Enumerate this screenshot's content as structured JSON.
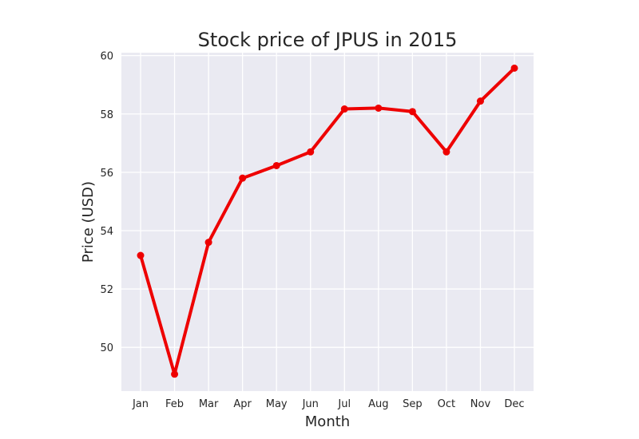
{
  "chart_data": {
    "type": "line",
    "title": "Stock price of JPUS in 2015",
    "xlabel": "Month",
    "ylabel": "Price (USD)",
    "categories": [
      "Jan",
      "Feb",
      "Mar",
      "Apr",
      "May",
      "Jun",
      "Jul",
      "Aug",
      "Sep",
      "Oct",
      "Nov",
      "Dec"
    ],
    "series": [
      {
        "name": "JPUS",
        "values": [
          53.15,
          49.08,
          53.6,
          55.8,
          56.23,
          56.7,
          58.17,
          58.2,
          58.08,
          56.7,
          58.44,
          59.57
        ],
        "color": "#ee0000",
        "marker": "circle"
      }
    ],
    "ylim": [
      48.5,
      60.1
    ],
    "yticks": [
      50,
      52,
      54,
      56,
      58,
      60
    ],
    "grid": true,
    "background_color": "#eaeaf2",
    "grid_color": "#ffffff"
  }
}
